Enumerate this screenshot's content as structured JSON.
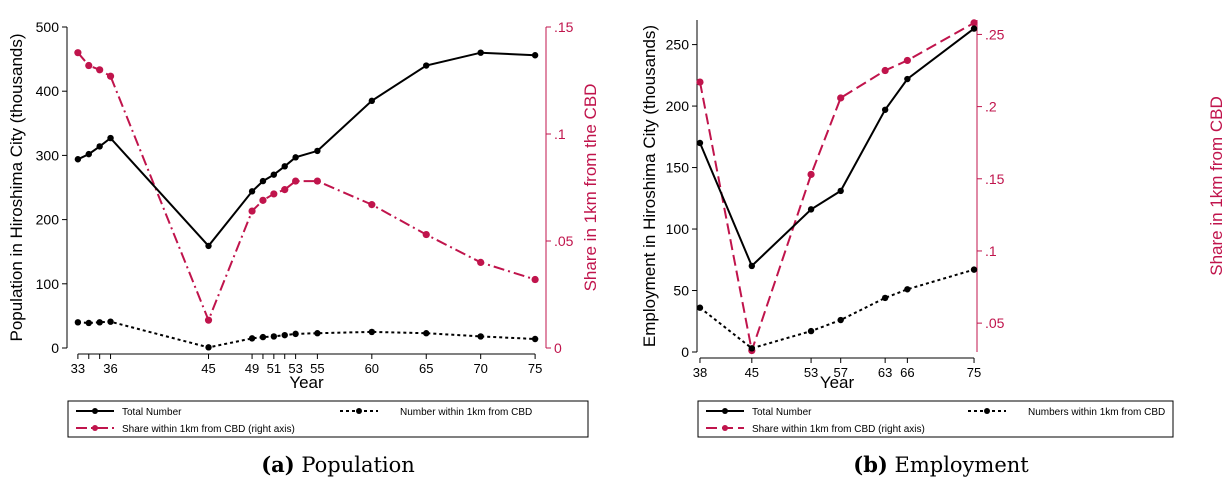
{
  "colors": {
    "total": "#000000",
    "within": "#000000",
    "share": "#c0144c",
    "axis": "#000000"
  },
  "panels": [
    {
      "caption_letter": "(a)",
      "caption_text": "Population"
    },
    {
      "caption_letter": "(b)",
      "caption_text": "Employment"
    }
  ],
  "chart_data": [
    {
      "type": "line",
      "xlabel": "Year",
      "ylabel": "Population in Hiroshima City (thousands)",
      "ylabel_right": "Share in 1km from the CBD",
      "xlim": [
        32,
        76
      ],
      "ylim": [
        0,
        500
      ],
      "ylim_right": [
        0,
        0.15
      ],
      "x_ticks": [
        "33",
        "",
        "",
        "36",
        "45",
        "49",
        "",
        "51",
        "",
        "53",
        "55",
        "60",
        "65",
        "70",
        "75"
      ],
      "x_tick_values": [
        33,
        34,
        35,
        36,
        45,
        49,
        50,
        51,
        52,
        53,
        55,
        60,
        65,
        70,
        75
      ],
      "y_ticks": [
        "0",
        "100",
        "200",
        "300",
        "400",
        "500"
      ],
      "y_tick_values": [
        0,
        100,
        200,
        300,
        400,
        500
      ],
      "y_right_ticks": [
        "0",
        ".05",
        ".1",
        ".15"
      ],
      "y_right_tick_values": [
        0,
        0.05,
        0.1,
        0.15
      ],
      "grid": false,
      "legend_position": "bottom",
      "series": [
        {
          "name": "Total Number",
          "axis": "left",
          "style": "solid",
          "x": [
            33,
            34,
            35,
            36,
            45,
            49,
            50,
            51,
            52,
            53,
            55,
            60,
            65,
            70,
            75
          ],
          "values": [
            294,
            302,
            314,
            327,
            159,
            244,
            260,
            270,
            283,
            297,
            307,
            385,
            440,
            460,
            456
          ]
        },
        {
          "name": "Number within 1km from CBD",
          "axis": "left",
          "style": "dotted",
          "x": [
            33,
            34,
            35,
            36,
            45,
            49,
            50,
            51,
            52,
            53,
            55,
            60,
            65,
            70,
            75
          ],
          "values": [
            40,
            39,
            40,
            41,
            1,
            15,
            17,
            18,
            20,
            22,
            23,
            25,
            23,
            18,
            14
          ]
        },
        {
          "name": "Share within 1km from CBD (right axis)",
          "axis": "right",
          "style": "dashdot",
          "x": [
            33,
            34,
            35,
            36,
            45,
            49,
            50,
            51,
            52,
            53,
            55,
            60,
            65,
            70,
            75
          ],
          "values": [
            0.138,
            0.132,
            0.13,
            0.127,
            0.013,
            0.064,
            0.069,
            0.072,
            0.074,
            0.078,
            0.078,
            0.067,
            0.053,
            0.04,
            0.032
          ]
        }
      ]
    },
    {
      "type": "line",
      "xlabel": "Year",
      "ylabel": "Employment in Hiroshima City (thousands)",
      "ylabel_right": "Share in 1km from CBD",
      "xlim": [
        37.6,
        75.4
      ],
      "ylim": [
        0,
        270
      ],
      "ylim_right": [
        0.03,
        0.26
      ],
      "x_ticks": [
        "38",
        "45",
        "53",
        "57",
        "63",
        "66",
        "75"
      ],
      "x_tick_values": [
        38,
        45,
        53,
        57,
        63,
        66,
        75
      ],
      "y_ticks": [
        "0",
        "50",
        "100",
        "150",
        "200",
        "250"
      ],
      "y_tick_values": [
        0,
        50,
        100,
        150,
        200,
        250
      ],
      "y_right_ticks": [
        ".05",
        ".1",
        ".15",
        ".2",
        ".25"
      ],
      "y_right_tick_values": [
        0.05,
        0.1,
        0.15,
        0.2,
        0.25
      ],
      "grid": false,
      "legend_position": "bottom",
      "series": [
        {
          "name": "Total Number",
          "axis": "left",
          "style": "solid",
          "x": [
            38,
            45,
            53,
            57,
            63,
            66,
            75
          ],
          "values": [
            170,
            70,
            116,
            131,
            197,
            222,
            263
          ]
        },
        {
          "name": "Numbers within 1km from CBD",
          "axis": "left",
          "style": "dotted",
          "x": [
            38,
            45,
            53,
            57,
            63,
            66,
            75
          ],
          "values": [
            36,
            3,
            17,
            26,
            44,
            51,
            67
          ]
        },
        {
          "name": "Share within 1km from CBD (right axis)",
          "axis": "right",
          "style": "dashed",
          "x": [
            38,
            45,
            53,
            57,
            63,
            66,
            75
          ],
          "values": [
            0.217,
            0.031,
            0.153,
            0.206,
            0.225,
            0.232,
            0.258
          ]
        }
      ]
    }
  ]
}
